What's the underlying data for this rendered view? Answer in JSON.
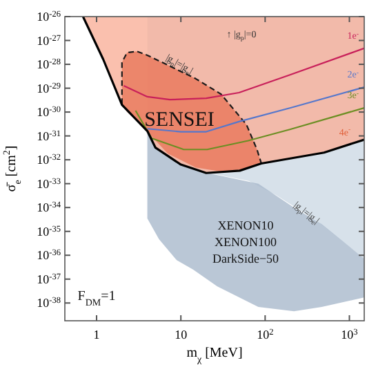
{
  "chart_data": {
    "type": "line",
    "xlabel": "m$_{χ}$ [MeV]",
    "ylabel": "σ̄$_{e}$ [cm$^{2}$]",
    "log": "xy",
    "xlim": [
      0.42,
      1500
    ],
    "ylim": [
      1.8e-39,
      1e-26
    ],
    "xticks": [
      1,
      10,
      {
        "value": 100,
        "label": "10$^{2}$"
      },
      {
        "value": 1000,
        "label": "10$^{3}$"
      }
    ],
    "yticks": [
      {
        "value": 1e-26,
        "label": "10$^{-26}$"
      },
      {
        "value": 1e-27,
        "label": "10$^{-27}$"
      },
      {
        "value": 1e-28,
        "label": "10$^{-28}$"
      },
      {
        "value": 1e-29,
        "label": "10$^{-29}$"
      },
      {
        "value": 1e-30,
        "label": "10$^{-30}$"
      },
      {
        "value": 1e-31,
        "label": "10$^{-31}$"
      },
      {
        "value": 1e-32,
        "label": "10$^{-32}$"
      },
      {
        "value": 1e-33,
        "label": "10$^{-33}$"
      },
      {
        "value": 1e-34,
        "label": "10$^{-34}$"
      },
      {
        "value": 1e-35,
        "label": "10$^{-35}$"
      },
      {
        "value": 1e-36,
        "label": "10$^{-36}$"
      },
      {
        "value": 1e-37,
        "label": "10$^{-37}$"
      },
      {
        "value": 1e-38,
        "label": "10$^{-38}$"
      }
    ],
    "series": [
      {
        "color": "#cdd9e5",
        "x": [
          4,
          5,
          11,
          18,
          64,
          135,
          420,
          1500
        ],
        "values": [
          null,
          null,
          null,
          null,
          null,
          null,
          null,
          null
        ],
        "lower": [
          1.5e-31,
          3.1e-32,
          5.5e-33,
          3.2e-33,
          1.3e-33,
          3.3e-34,
          2.6e-35,
          7.2e-37
        ],
        "upper": [
          1e-26,
          1e-26,
          1e-26,
          1e-26,
          1e-26,
          1e-26,
          1e-26,
          1e-26
        ]
      },
      {
        "color": "#a9b9cc",
        "x": [
          4,
          5.5,
          8.9,
          14,
          27,
          83,
          220,
          470,
          1500
        ],
        "values": [
          null,
          null,
          null,
          null,
          null,
          null,
          null,
          null,
          null
        ],
        "lower": [
          3.5e-35,
          4.7e-36,
          6.3e-37,
          2.5e-37,
          5e-38,
          6.8e-39,
          4.5e-39,
          6.8e-39,
          1.7e-38
        ],
        "upper": [
          1.5e-31,
          2.3e-32,
          8e-33,
          4e-33,
          2.3e-33,
          1e-33,
          1e-34,
          2e-35,
          7.2e-37
        ]
      },
      {
        "color": "#f9b09a",
        "x": [
          0.69,
          1.2,
          2,
          4,
          5,
          10,
          20,
          50,
          90,
          500,
          1500
        ],
        "values": [
          null,
          null,
          null,
          null,
          null,
          null,
          null,
          null,
          null,
          null,
          null
        ],
        "lower": [
          1e-26,
          1.6e-28,
          2e-30,
          1.6e-31,
          3.2e-32,
          6.3e-33,
          2.8e-33,
          3.5e-33,
          7e-33,
          2e-32,
          7e-32
        ],
        "upper": [
          1e-26,
          1e-26,
          1e-26,
          1e-26,
          1e-26,
          1e-26,
          1e-26,
          1e-26,
          1e-26,
          1e-26,
          1e-26
        ]
      },
      {
        "color": "#e8775a",
        "x": [
          2,
          2.3,
          3,
          4,
          7,
          15,
          30,
          60,
          80,
          90
        ],
        "values": [
          null,
          null,
          null,
          null,
          null,
          null,
          null,
          null,
          null,
          null
        ],
        "lower": [
          2.2e-30,
          1e-30,
          4.5e-31,
          1.5e-31,
          1.8e-32,
          4.8e-33,
          3.2e-33,
          4.2e-33,
          5.5e-33,
          7.2e-33
        ],
        "upper": [
          1.2e-28,
          3.1e-28,
          3.5e-28,
          2.4e-28,
          9.3e-29,
          2.5e-29,
          5.6e-30,
          3e-31,
          2.7e-32,
          7.2e-33
        ]
      },
      {
        "color": "#1a1a1a",
        "line_style": "dashed",
        "x": [
          2,
          2,
          2.3,
          3,
          4,
          7,
          15,
          30,
          60,
          80,
          90
        ],
        "values": [
          2.2e-30,
          1.2e-28,
          3.1e-28,
          3.5e-28,
          2.4e-28,
          9.3e-29,
          2.5e-29,
          5.6e-30,
          3e-31,
          2.7e-32,
          7.2e-33
        ]
      },
      {
        "name": "1e$^{-}$",
        "color": "#c8205a",
        "x": [
          2.1,
          4,
          7.4,
          20,
          49,
          200,
          1500
        ],
        "values": [
          1.26e-29,
          4.4e-30,
          3.3e-30,
          3.8e-30,
          6.5e-30,
          3.7e-29,
          4.7e-28
        ]
      },
      {
        "name": "2e$^{-}$",
        "color": "#5577cc",
        "x": [
          4,
          10,
          20,
          49,
          200,
          1500
        ],
        "values": [
          2e-31,
          1.5e-31,
          1.5e-31,
          4e-31,
          1.5e-30,
          1.1e-29
        ]
      },
      {
        "name": "3e$^{-}$",
        "color": "#6b8e23",
        "x": [
          2.9,
          4.5,
          10.8,
          20.5,
          63,
          200,
          1500
        ],
        "values": [
          1.15e-30,
          8e-32,
          2.7e-32,
          2.7e-32,
          6.3e-32,
          1.9e-31,
          1.5e-30
        ]
      },
      {
        "color": "#000000",
        "x": [
          0.69,
          1.2,
          2,
          4,
          5,
          10,
          20,
          50,
          90,
          500,
          1500
        ],
        "values": [
          1e-26,
          1.6e-28,
          2e-30,
          1.6e-31,
          3.2e-32,
          6.3e-33,
          2.8e-33,
          3.5e-33,
          7e-33,
          2e-32,
          7e-32
        ]
      }
    ],
    "annotations": [
      "↑ |g$_{p}$|=0",
      {
        "text": "|g$_{p}$|=|g$_{e}$|",
        "x": 9.6,
        "y": 1e-28
      },
      "SENSEI",
      {
        "text": "|g$_{p}$|=|g$_{e}$|",
        "x": 310,
        "y": 6e-35
      },
      "XENON10",
      "XENON100",
      "DarkSide−50",
      "F$_{DM}$=1",
      "4e$^{-}$"
    ]
  }
}
